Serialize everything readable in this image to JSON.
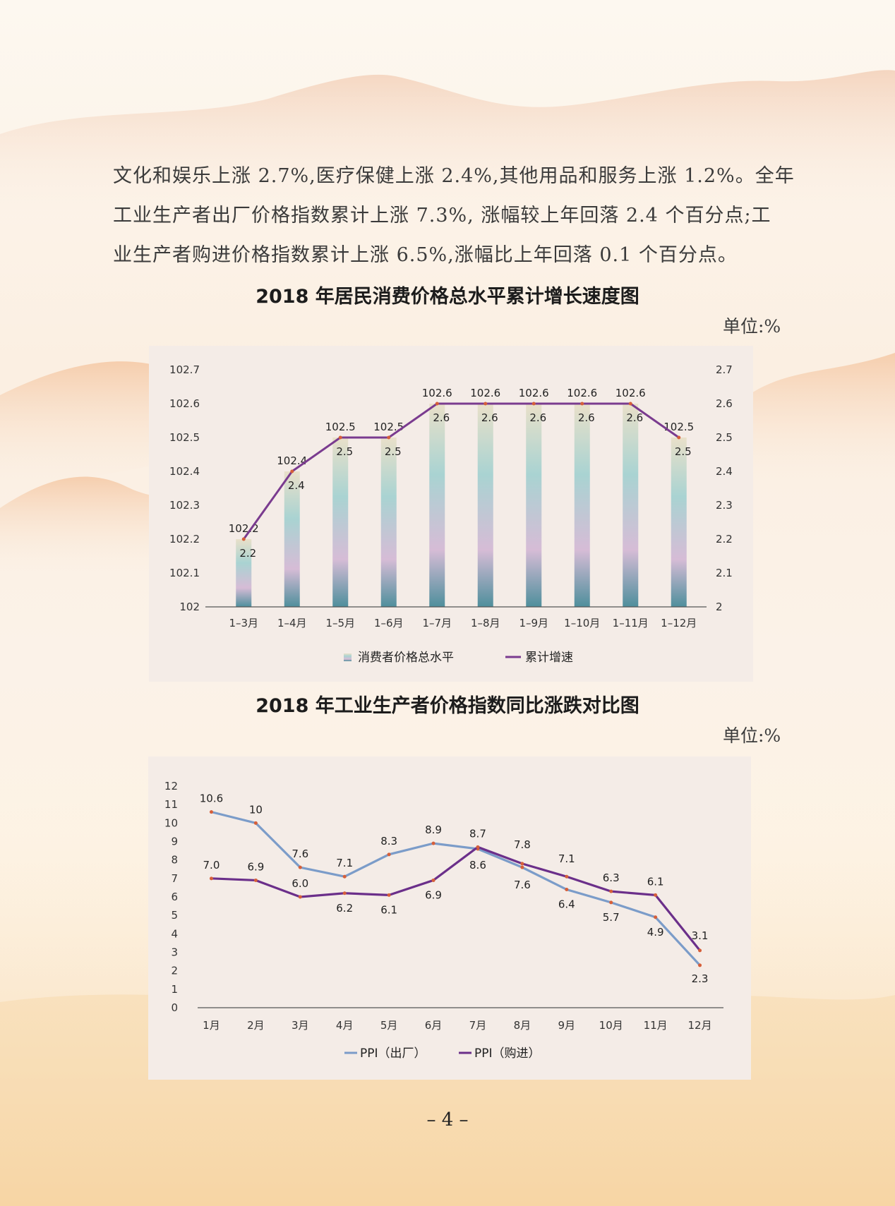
{
  "paragraph": {
    "lines": [
      "文化和娱乐上涨 2.7%,医疗保健上涨 2.4%,其他用品和服务上涨 1.2%。全年",
      "工业生产者出厂价格指数累计上涨 7.3%, 涨幅较上年回落 2.4 个百分点;工",
      "业生产者购进价格指数累计上涨 6.5%,涨幅比上年回落 0.1 个百分点。"
    ]
  },
  "chart1": {
    "title": "2018 年居民消费价格总水平累计增长速度图",
    "unit": "单位:%"
  },
  "chart2": {
    "title": "2018 年工业生产者价格指数同比涨跌对比图",
    "unit": "单位:%"
  },
  "page_number": "– 4 –",
  "chart_data": [
    {
      "type": "bar",
      "categories": [
        "1–3月",
        "1–4月",
        "1–5月",
        "1–6月",
        "1–7月",
        "1–8月",
        "1–9月",
        "1–10月",
        "1–11月",
        "1–12月"
      ],
      "series": [
        {
          "name": "消费者价格总水平",
          "type": "bar",
          "axis": "left",
          "values": [
            102.2,
            102.4,
            102.5,
            102.5,
            102.6,
            102.6,
            102.6,
            102.6,
            102.6,
            102.5
          ],
          "labels": [
            "102.2",
            "102.4",
            "102.5",
            "102.5",
            "102.6",
            "102.6",
            "102.6",
            "102.6",
            "102.6",
            "102.5"
          ],
          "color": "#9cc8cc"
        },
        {
          "name": "累计增速",
          "type": "line",
          "axis": "right",
          "values": [
            2.2,
            2.4,
            2.5,
            2.5,
            2.6,
            2.6,
            2.6,
            2.6,
            2.6,
            2.5
          ],
          "labels": [
            "2.2",
            "2.4",
            "2.5",
            "2.5",
            "2.6",
            "2.6",
            "2.6",
            "2.6",
            "2.6",
            "2.5"
          ],
          "color": "#7a3b8f"
        }
      ],
      "yleft": {
        "range": [
          102,
          102.7
        ],
        "ticks": [
          "102",
          "102.1",
          "102.2",
          "102.3",
          "102.4",
          "102.5",
          "102.6",
          "102.7"
        ]
      },
      "yright": {
        "range": [
          2,
          2.7
        ],
        "ticks": [
          "2",
          "2.1",
          "2.2",
          "2.3",
          "2.4",
          "2.5",
          "2.6",
          "2.7"
        ]
      },
      "legend_position": "bottom",
      "grid": false
    },
    {
      "type": "line",
      "categories": [
        "1月",
        "2月",
        "3月",
        "4月",
        "5月",
        "6月",
        "7月",
        "8月",
        "9月",
        "10月",
        "11月",
        "12月"
      ],
      "series": [
        {
          "name": "PPI（出厂）",
          "color": "#7b9cc9",
          "values": [
            10.6,
            10,
            7.6,
            7.1,
            8.3,
            8.9,
            8.6,
            7.6,
            6.4,
            5.7,
            4.9,
            2.3
          ],
          "labels": [
            "10.6",
            "10",
            "7.6",
            "7.1",
            "8.3",
            "8.9",
            "8.6",
            "7.6",
            "6.4",
            "5.7",
            "4.9",
            "2.3"
          ]
        },
        {
          "name": "PPI（购进）",
          "color": "#6b2f8a",
          "values": [
            7.0,
            6.9,
            6.0,
            6.2,
            6.1,
            6.9,
            8.7,
            7.8,
            7.1,
            6.3,
            6.1,
            3.1
          ],
          "labels": [
            "7.0",
            "6.9",
            "6.0",
            "6.2",
            "6.1",
            "6.9",
            "8.7",
            "7.8",
            "7.1",
            "6.3",
            "6.1",
            "3.1"
          ]
        }
      ],
      "y": {
        "range": [
          0,
          12
        ],
        "ticks": [
          "0",
          "1",
          "2",
          "3",
          "4",
          "5",
          "6",
          "7",
          "8",
          "9",
          "10",
          "11",
          "12"
        ]
      },
      "legend_position": "bottom",
      "grid": false
    }
  ]
}
